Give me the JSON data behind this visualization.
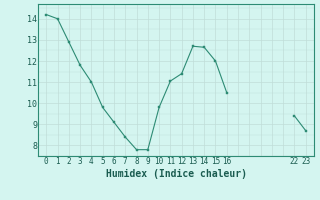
{
  "x_values": [
    0,
    1,
    2,
    3,
    4,
    5,
    6,
    7,
    8,
    9,
    10,
    11,
    12,
    13,
    14,
    15,
    16,
    22,
    23
  ],
  "y_values": [
    14.2,
    14.0,
    12.9,
    11.8,
    11.0,
    9.8,
    9.1,
    8.4,
    7.8,
    7.8,
    9.8,
    11.05,
    11.4,
    12.7,
    12.65,
    12.0,
    10.5,
    9.4,
    8.7
  ],
  "line_color": "#2d8b74",
  "marker_color": "#2d8b74",
  "bg_color": "#d4f5f0",
  "grid_color": "#c0ddd8",
  "xlabel": "Humidex (Indice chaleur)",
  "ytick_values": [
    8,
    9,
    10,
    11,
    12,
    13,
    14
  ],
  "ylim": [
    7.5,
    14.7
  ],
  "xlim": [
    -0.7,
    23.7
  ]
}
